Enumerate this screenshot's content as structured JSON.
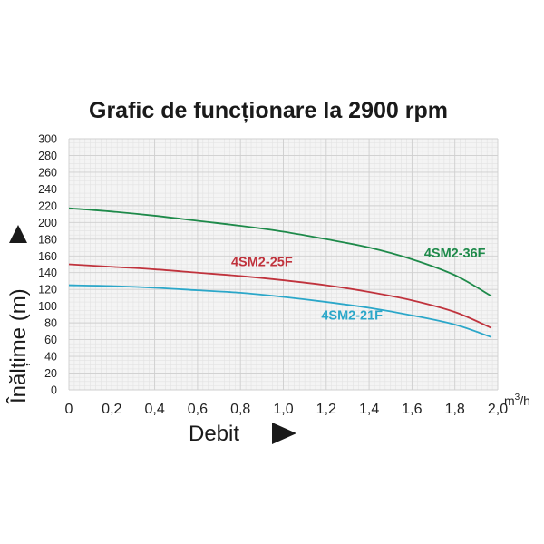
{
  "chart_data": {
    "type": "line",
    "title": "Grafic de funcționare la 2900 rpm",
    "xlabel": "Debit",
    "ylabel": "Înălțime (m)",
    "x_unit": "m³/h",
    "xlim": [
      0,
      2.0
    ],
    "ylim": [
      0,
      300
    ],
    "x_ticks": [
      "0",
      "0,2",
      "0,4",
      "0,6",
      "0,8",
      "1,0",
      "1,2",
      "1,4",
      "1,6",
      "1,8",
      "2,0"
    ],
    "y_ticks": [
      "0",
      "20",
      "40",
      "60",
      "80",
      "100",
      "120",
      "140",
      "160",
      "180",
      "200",
      "220",
      "240",
      "260",
      "280",
      "300"
    ],
    "grid": true,
    "series": [
      {
        "name": "4SM2-36F",
        "color": "#1e8a4a",
        "x": [
          0,
          0.2,
          0.4,
          0.6,
          0.8,
          1.0,
          1.2,
          1.4,
          1.6,
          1.8,
          1.97
        ],
        "y": [
          217,
          213,
          208,
          202,
          196,
          189,
          180,
          170,
          156,
          137,
          112
        ]
      },
      {
        "name": "4SM2-25F",
        "color": "#c0333d",
        "x": [
          0,
          0.2,
          0.4,
          0.6,
          0.8,
          1.0,
          1.2,
          1.4,
          1.6,
          1.8,
          1.97
        ],
        "y": [
          150,
          147,
          144,
          140,
          136,
          131,
          125,
          117,
          107,
          93,
          74
        ]
      },
      {
        "name": "4SM2-21F",
        "color": "#2ba7c9",
        "x": [
          0,
          0.2,
          0.4,
          0.6,
          0.8,
          1.0,
          1.2,
          1.4,
          1.6,
          1.8,
          1.97
        ],
        "y": [
          125,
          124,
          122,
          119,
          116,
          111,
          105,
          98,
          89,
          78,
          63
        ]
      }
    ]
  }
}
